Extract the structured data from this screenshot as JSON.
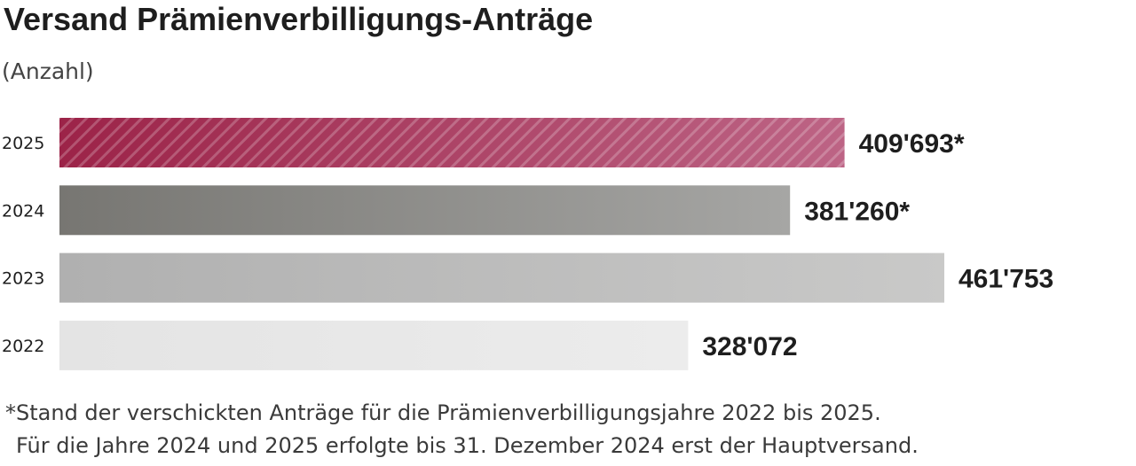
{
  "chart_data": {
    "type": "bar",
    "orientation": "horizontal",
    "title": "Versand Prämienverbilligungs-Anträge",
    "subtitle": "(Anzahl)",
    "categories": [
      "2025",
      "2024",
      "2023",
      "2022"
    ],
    "values": [
      409693,
      381260,
      461753,
      328072
    ],
    "value_labels": [
      "409'693*",
      "381'260*",
      "461'753",
      "328'072"
    ],
    "bar_colors": [
      "#9c2348",
      "#7a7a78",
      "#b2b2b2",
      "#e6e6e6"
    ],
    "xlim": [
      0,
      461753
    ],
    "grid": false,
    "legend": "none"
  },
  "footnote": {
    "line1": "*Stand der verschickten Anträge für die Prämienverbilligungsjahre 2022 bis 2025.",
    "line2": "Für die Jahre 2024 und 2025 erfolgte bis 31. Dezember 2024 erst der Hauptversand."
  }
}
